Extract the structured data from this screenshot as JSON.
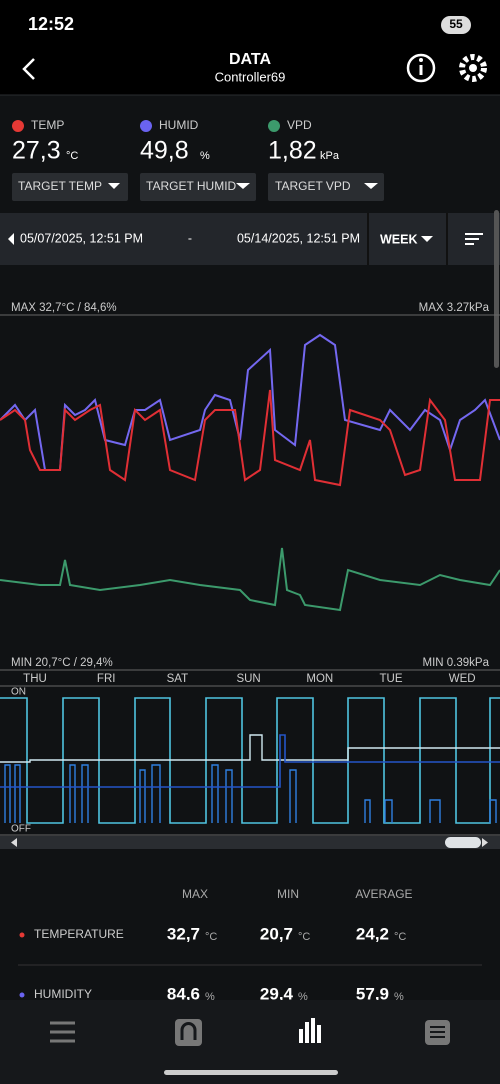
{
  "status_bar": {
    "time": "12:52",
    "battery": "55"
  },
  "header": {
    "title": "DATA",
    "subtitle": "Controller69"
  },
  "readings": [
    {
      "label": "TEMP",
      "value": "27,3",
      "unit": "°C",
      "target": "TARGET TEMP"
    },
    {
      "label": "HUMID",
      "value": "49,8",
      "unit": "%",
      "target": "TARGET HUMID"
    },
    {
      "label": "VPD",
      "value": "1,82",
      "unit": "kPa",
      "target": "TARGET VPD"
    }
  ],
  "range": {
    "start": "05/07/2025, 12:51 PM",
    "separator": "-",
    "end": "05/14/2025, 12:51 PM",
    "period": "WEEK"
  },
  "chart": {
    "max_left": "MAX 32,7°C / 84,6%",
    "max_right": "MAX 3.27kPa",
    "min_left": "MIN 20,7°C / 29,4%",
    "min_right": "MIN 0.39kPa",
    "days": [
      "THU",
      "FRI",
      "SAT",
      "SUN",
      "MON",
      "TUE",
      "WED"
    ],
    "on": "ON",
    "off": "OFF"
  },
  "stats": {
    "headers": [
      "MAX",
      "MIN",
      "AVERAGE"
    ],
    "rows": [
      {
        "name": "TEMPERATURE",
        "cells": [
          {
            "value": "32,7",
            "unit": "°C"
          },
          {
            "value": "20,7",
            "unit": "°C"
          },
          {
            "value": "24,2",
            "unit": "°C"
          }
        ]
      },
      {
        "name": "HUMIDITY",
        "cells": [
          {
            "value": "84,6",
            "unit": "%"
          },
          {
            "value": "29,4",
            "unit": "%"
          },
          {
            "value": "57,9",
            "unit": "%"
          }
        ]
      }
    ]
  }
}
